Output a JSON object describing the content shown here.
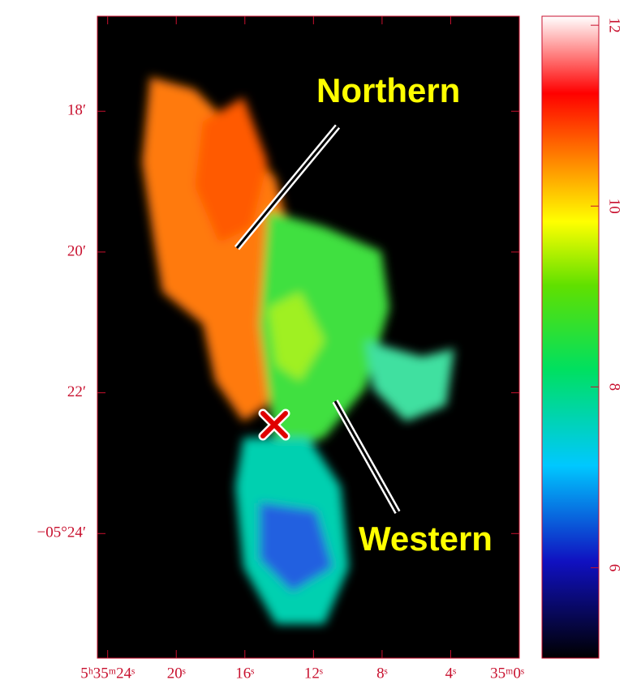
{
  "chart_data": {
    "type": "image",
    "xlim": [
      24.6,
      0
    ],
    "xticks": [
      {
        "value": 24,
        "label": "5ʰ35ᵐ24ˢ"
      },
      {
        "value": 20,
        "label": "20ˢ"
      },
      {
        "value": 16,
        "label": "16ˢ"
      },
      {
        "value": 12,
        "label": "12ˢ"
      },
      {
        "value": 8,
        "label": "8ˢ"
      },
      {
        "value": 4,
        "label": "4ˢ"
      },
      {
        "value": 0,
        "label": "35ᵐ0ˢ"
      }
    ],
    "ylim": [
      25.77,
      16.65
    ],
    "yticks": [
      {
        "value": 18,
        "label": "18′"
      },
      {
        "value": 20,
        "label": "20′"
      },
      {
        "value": 22,
        "label": "22′"
      },
      {
        "value": 24,
        "label": "−05°24′"
      }
    ],
    "colorbar": {
      "lim": [
        5,
        12.1
      ],
      "ticks": [
        6,
        8,
        10,
        12
      ]
    },
    "annotations": [
      "Northern",
      "Western"
    ]
  }
}
